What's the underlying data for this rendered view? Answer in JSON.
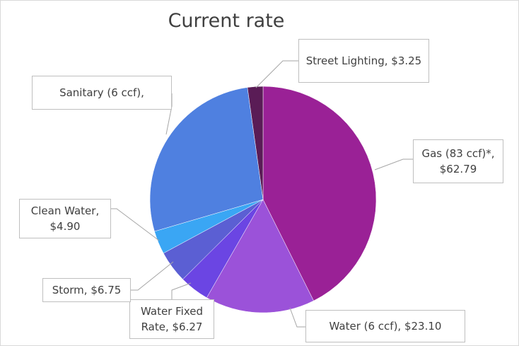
{
  "chart_data": {
    "type": "pie",
    "title": "Current rate",
    "labels": [
      "Gas (83 ccf)*, $62.79",
      "Water (6 ccf), $23.10",
      "Water Fixed Rate, $6.27",
      "Storm, $6.75",
      "Clean Water, $4.90",
      "Sanitary (6 ccf),",
      "Street Lighting, $3.25"
    ],
    "values": [
      62.79,
      23.1,
      6.27,
      6.75,
      4.9,
      40.27,
      3.25
    ],
    "colors": [
      "#9a2196",
      "#9b52d9",
      "#6b45e3",
      "#5b5fd3",
      "#3aa6f4",
      "#4f80e0",
      "#5a1c56"
    ]
  }
}
